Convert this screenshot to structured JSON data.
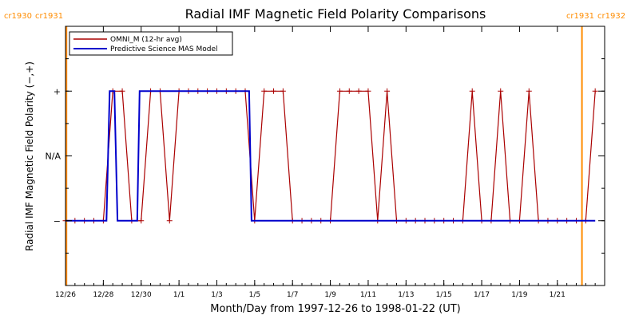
{
  "chart_data": {
    "type": "line",
    "title": "Radial IMF Magnetic Field Polarity Comparisons",
    "xlabel": "Month/Day from 1997-12-26 to 1998-01-22 (UT)",
    "ylabel": "Radial IMF Magnetic Field Polarity (−,+)",
    "xlim": [
      "1997-12-26",
      "1998-01-23 12:00"
    ],
    "ylim": [
      -2,
      2
    ],
    "x_tick_labels": [
      "12/26",
      "12/28",
      "12/30",
      "1/1",
      "1/3",
      "1/5",
      "1/7",
      "1/9",
      "1/11",
      "1/13",
      "1/15",
      "1/17",
      "1/19",
      "1/21"
    ],
    "x_tick_dates": [
      "1997-12-26",
      "1997-12-28",
      "1997-12-30",
      "1998-01-01",
      "1998-01-03",
      "1998-01-05",
      "1998-01-07",
      "1998-01-09",
      "1998-01-11",
      "1998-01-13",
      "1998-01-15",
      "1998-01-17",
      "1998-01-19",
      "1998-01-21"
    ],
    "y_ticks": [
      {
        "value": 1,
        "label": "+"
      },
      {
        "value": 0,
        "label": "N/A"
      },
      {
        "value": -1,
        "label": "−"
      }
    ],
    "carrington_markers": [
      {
        "date": "1997-12-26 01:12",
        "label_left": "cr1930",
        "label_right": "cr1931",
        "color": "#ff8c00"
      },
      {
        "date": "1998-01-22 07:12",
        "label_left": "cr1931",
        "label_right": "cr1932",
        "color": "#ff8c00"
      }
    ],
    "legend_position": "top-left",
    "series": [
      {
        "name": "OMNI_M (12-hr avg)",
        "color": "#aa0000",
        "markers": "plus",
        "x": [
          "1997-12-26 00:00",
          "1997-12-26 12:00",
          "1997-12-27 00:00",
          "1997-12-27 12:00",
          "1997-12-28 00:00",
          "1997-12-28 12:00",
          "1997-12-29 00:00",
          "1997-12-29 12:00",
          "1997-12-30 00:00",
          "1997-12-30 12:00",
          "1997-12-31 00:00",
          "1997-12-31 12:00",
          "1998-01-01 00:00",
          "1998-01-01 12:00",
          "1998-01-02 00:00",
          "1998-01-02 12:00",
          "1998-01-03 00:00",
          "1998-01-03 12:00",
          "1998-01-04 00:00",
          "1998-01-04 12:00",
          "1998-01-05 00:00",
          "1998-01-05 12:00",
          "1998-01-06 00:00",
          "1998-01-06 12:00",
          "1998-01-07 00:00",
          "1998-01-07 12:00",
          "1998-01-08 00:00",
          "1998-01-08 12:00",
          "1998-01-09 00:00",
          "1998-01-09 12:00",
          "1998-01-10 00:00",
          "1998-01-10 12:00",
          "1998-01-11 00:00",
          "1998-01-11 12:00",
          "1998-01-12 00:00",
          "1998-01-12 12:00",
          "1998-01-13 00:00",
          "1998-01-13 12:00",
          "1998-01-14 00:00",
          "1998-01-14 12:00",
          "1998-01-15 00:00",
          "1998-01-15 12:00",
          "1998-01-16 00:00",
          "1998-01-16 12:00",
          "1998-01-17 00:00",
          "1998-01-17 12:00",
          "1998-01-18 00:00",
          "1998-01-18 12:00",
          "1998-01-19 00:00",
          "1998-01-19 12:00",
          "1998-01-20 00:00",
          "1998-01-20 12:00",
          "1998-01-21 00:00",
          "1998-01-21 12:00",
          "1998-01-22 00:00",
          "1998-01-22 12:00",
          "1998-01-23 00:00"
        ],
        "values": [
          -1,
          -1,
          -1,
          -1,
          -1,
          1,
          1,
          -1,
          -1,
          1,
          1,
          -1,
          1,
          1,
          1,
          1,
          1,
          1,
          1,
          1,
          -1,
          1,
          1,
          1,
          -1,
          -1,
          -1,
          -1,
          -1,
          1,
          1,
          1,
          1,
          -1,
          1,
          -1,
          -1,
          -1,
          -1,
          -1,
          -1,
          -1,
          -1,
          1,
          -1,
          -1,
          1,
          -1,
          -1,
          1,
          -1,
          -1,
          -1,
          -1,
          -1,
          -1,
          1
        ]
      },
      {
        "name": "Predictive Science MAS Model",
        "color": "#0000cc",
        "markers": "none",
        "x": [
          "1997-12-26 00:00",
          "1997-12-28 04:00",
          "1997-12-28 08:00",
          "1997-12-28 14:00",
          "1997-12-28 18:00",
          "1997-12-29 19:00",
          "1997-12-29 22:00",
          "1998-01-04 17:00",
          "1998-01-04 20:00",
          "1998-01-23 00:00"
        ],
        "values": [
          -1,
          -1,
          1,
          1,
          -1,
          -1,
          1,
          1,
          -1,
          -1
        ]
      }
    ]
  }
}
